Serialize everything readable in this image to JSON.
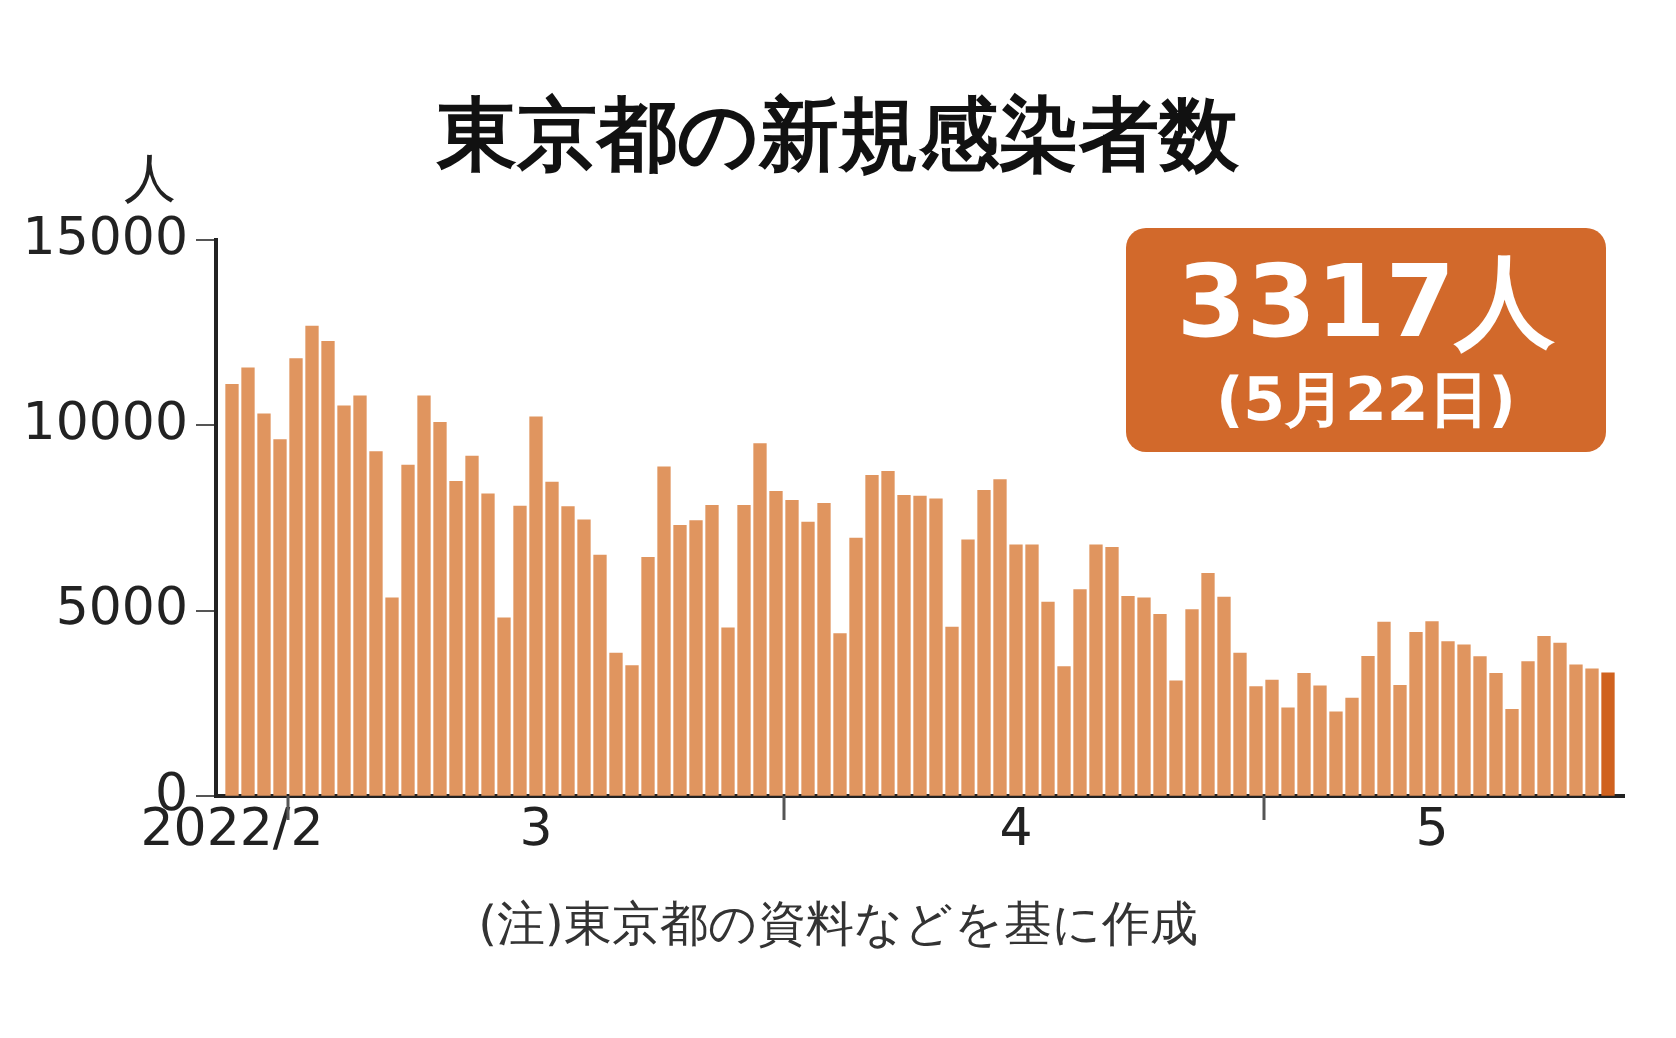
{
  "chart_data": {
    "type": "bar",
    "title": "東京都の新規感染者数",
    "ylabel": "人",
    "x": [
      "2022-02-25",
      "2022-02-26",
      "2022-02-27",
      "2022-02-28",
      "2022-03-01",
      "2022-03-02",
      "2022-03-03",
      "2022-03-04",
      "2022-03-05",
      "2022-03-06",
      "2022-03-07",
      "2022-03-08",
      "2022-03-09",
      "2022-03-10",
      "2022-03-11",
      "2022-03-12",
      "2022-03-13",
      "2022-03-14",
      "2022-03-15",
      "2022-03-16",
      "2022-03-17",
      "2022-03-18",
      "2022-03-19",
      "2022-03-20",
      "2022-03-21",
      "2022-03-22",
      "2022-03-23",
      "2022-03-24",
      "2022-03-25",
      "2022-03-26",
      "2022-03-27",
      "2022-03-28",
      "2022-03-29",
      "2022-03-30",
      "2022-03-31",
      "2022-04-01",
      "2022-04-02",
      "2022-04-03",
      "2022-04-04",
      "2022-04-05",
      "2022-04-06",
      "2022-04-07",
      "2022-04-08",
      "2022-04-09",
      "2022-04-10",
      "2022-04-11",
      "2022-04-12",
      "2022-04-13",
      "2022-04-14",
      "2022-04-15",
      "2022-04-16",
      "2022-04-17",
      "2022-04-18",
      "2022-04-19",
      "2022-04-20",
      "2022-04-21",
      "2022-04-22",
      "2022-04-23",
      "2022-04-24",
      "2022-04-25",
      "2022-04-26",
      "2022-04-27",
      "2022-04-28",
      "2022-04-29",
      "2022-04-30",
      "2022-05-01",
      "2022-05-02",
      "2022-05-03",
      "2022-05-04",
      "2022-05-05",
      "2022-05-06",
      "2022-05-07",
      "2022-05-08",
      "2022-05-09",
      "2022-05-10",
      "2022-05-11",
      "2022-05-12",
      "2022-05-13",
      "2022-05-14",
      "2022-05-15",
      "2022-05-16",
      "2022-05-17",
      "2022-05-18",
      "2022-05-19",
      "2022-05-20",
      "2022-05-21",
      "2022-05-22"
    ],
    "values": [
      11100,
      11540,
      10300,
      9610,
      11790,
      12670,
      12260,
      10520,
      10790,
      9280,
      5340,
      8920,
      10790,
      10070,
      8480,
      9160,
      8140,
      4800,
      7810,
      10220,
      8460,
      7800,
      7440,
      6490,
      3850,
      3510,
      6430,
      8870,
      7290,
      7420,
      7830,
      4530,
      7830,
      9500,
      8210,
      7970,
      7380,
      7890,
      4370,
      6950,
      8640,
      8750,
      8100,
      8080,
      8010,
      4550,
      6900,
      8240,
      8530,
      6770,
      6770,
      5220,
      3480,
      5560,
      6770,
      6700,
      5380,
      5340,
      4890,
      3100,
      5020,
      6000,
      5360,
      3850,
      2940,
      3120,
      2370,
      3300,
      2960,
      2260,
      2630,
      3760,
      4680,
      2980,
      4410,
      4700,
      4160,
      4070,
      3750,
      3300,
      2330,
      3620,
      4300,
      4120,
      3530,
      3420,
      3317
    ],
    "colors": [
      "#e0955f",
      "#e0955f",
      "#e0955f",
      "#e0955f",
      "#e0955f",
      "#e0955f",
      "#e0955f",
      "#e0955f",
      "#e0955f",
      "#e0955f",
      "#e0955f",
      "#e0955f",
      "#e0955f",
      "#e0955f",
      "#e0955f",
      "#e0955f",
      "#e0955f",
      "#e0955f",
      "#e0955f",
      "#e0955f",
      "#e0955f",
      "#e0955f",
      "#e0955f",
      "#e0955f",
      "#e0955f",
      "#e0955f",
      "#e0955f",
      "#e0955f",
      "#e0955f",
      "#e0955f",
      "#e0955f",
      "#e0955f",
      "#e0955f",
      "#e0955f",
      "#e0955f",
      "#e0955f",
      "#e0955f",
      "#e0955f",
      "#e0955f",
      "#e0955f",
      "#e0955f",
      "#e0955f",
      "#e0955f",
      "#e0955f",
      "#e0955f",
      "#e0955f",
      "#e0955f",
      "#e0955f",
      "#e0955f",
      "#e0955f",
      "#e0955f",
      "#e0955f",
      "#e0955f",
      "#e0955f",
      "#e0955f",
      "#e0955f",
      "#e0955f",
      "#e0955f",
      "#e0955f",
      "#e0955f",
      "#e0955f",
      "#e0955f",
      "#e0955f",
      "#e0955f",
      "#e0955f",
      "#e0955f",
      "#e0955f",
      "#e0955f",
      "#e0955f",
      "#e0955f",
      "#e0955f",
      "#e0955f",
      "#e0955f",
      "#e0955f",
      "#e0955f",
      "#e0955f",
      "#e0955f",
      "#e0955f",
      "#e0955f",
      "#e0955f",
      "#e0955f",
      "#e0955f",
      "#e0955f",
      "#e0955f",
      "#e0955f",
      "#e0955f",
      "#d0621f"
    ],
    "xlim": [
      "2022-02-24",
      "2022-05-23"
    ],
    "xticks": [
      {
        "value": "2022-02-25",
        "label": "2022/2"
      },
      {
        "value": "2022-02-28T12:00",
        "label": null
      },
      {
        "value": "2022-03-16",
        "label": "3"
      },
      {
        "value": "2022-03-31T12:00",
        "label": null
      },
      {
        "value": "2022-04-15",
        "label": "4"
      },
      {
        "value": "2022-04-30T12:00",
        "label": null
      },
      {
        "value": "2022-05-11",
        "label": "5"
      }
    ],
    "ylim": [
      0,
      15000
    ],
    "yticks": [
      0,
      5000,
      10000,
      15000
    ],
    "grid": false,
    "legend": false,
    "annotations": [
      "3317人",
      "(5月22日)",
      "(注)東京都の資料などを基に作成"
    ]
  }
}
